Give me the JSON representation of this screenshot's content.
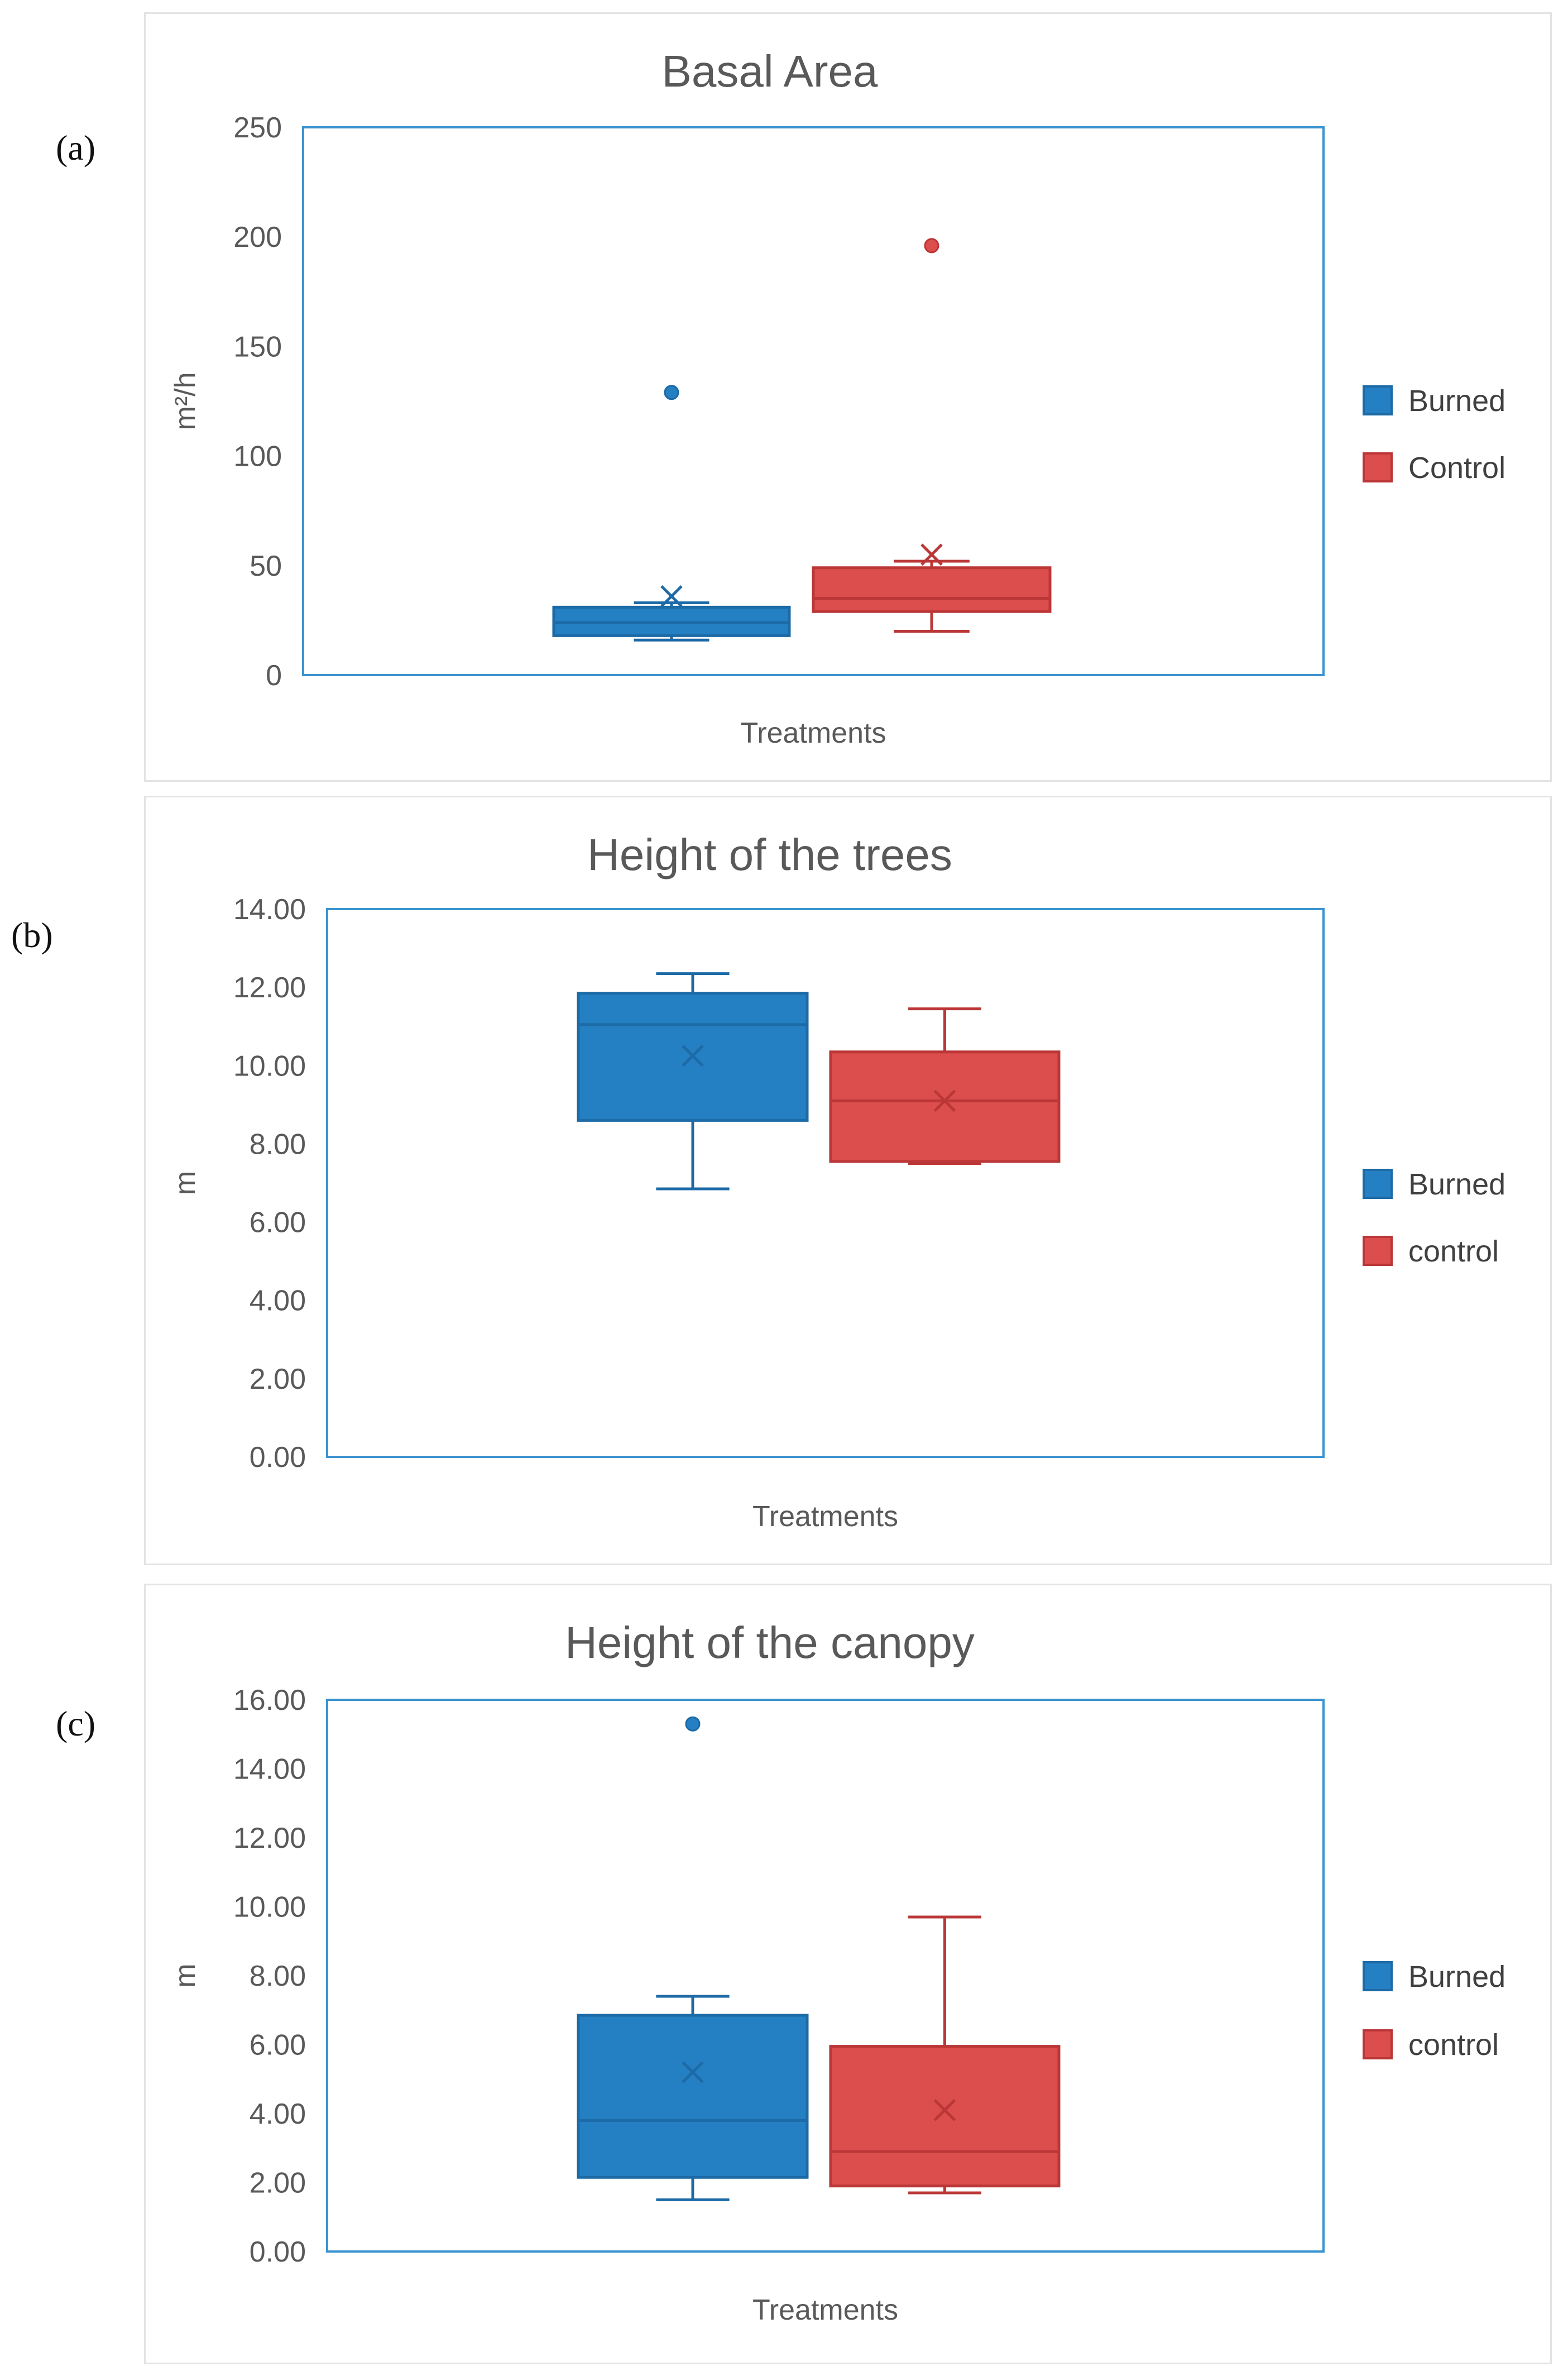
{
  "panel_labels": [
    "(a)",
    "(b)",
    "(c)"
  ],
  "colors": {
    "burned_fill": "#2480c3",
    "burned_edge": "#1c6aa6",
    "control_fill": "#dc4d4d",
    "control_edge": "#bb3737",
    "plot_border": "#3b93cf",
    "frame_border": "#e3e3e3",
    "text": "#595959"
  },
  "chart_data": [
    {
      "type": "boxplot",
      "title": "Basal Area",
      "xlabel": "Treatments",
      "ylabel": "m²/h",
      "ylim": [
        0,
        250
      ],
      "yticks": [
        0,
        50,
        100,
        150,
        200,
        250
      ],
      "ytick_decimals": 0,
      "legend_position": "right",
      "series": [
        {
          "name": "Burned",
          "whisker_low": 16,
          "q1": 18,
          "median": 24,
          "q3": 31,
          "whisker_high": 33,
          "mean": 36,
          "outliers": [
            129
          ]
        },
        {
          "name": "Control",
          "whisker_low": 20,
          "q1": 29,
          "median": 35,
          "q3": 49,
          "whisker_high": 52,
          "mean": 55,
          "outliers": [
            196
          ]
        }
      ]
    },
    {
      "type": "boxplot",
      "title": "Height of the trees",
      "xlabel": "Treatments",
      "ylabel": "m",
      "ylim": [
        0,
        14
      ],
      "yticks": [
        0,
        2,
        4,
        6,
        8,
        10,
        12,
        14
      ],
      "ytick_decimals": 2,
      "legend_position": "right",
      "series": [
        {
          "name": "Burned",
          "whisker_low": 6.85,
          "q1": 8.6,
          "median": 11.05,
          "q3": 11.85,
          "whisker_high": 12.35,
          "mean": 10.25,
          "outliers": []
        },
        {
          "name": "control",
          "whisker_low": 7.5,
          "q1": 7.55,
          "median": 9.1,
          "q3": 10.35,
          "whisker_high": 11.45,
          "mean": 9.1,
          "outliers": []
        }
      ]
    },
    {
      "type": "boxplot",
      "title": "Height of the canopy",
      "xlabel": "Treatments",
      "ylabel": "m",
      "ylim": [
        0,
        16
      ],
      "yticks": [
        0,
        2,
        4,
        6,
        8,
        10,
        12,
        14,
        16
      ],
      "ytick_decimals": 2,
      "legend_position": "right",
      "series": [
        {
          "name": "Burned",
          "whisker_low": 1.5,
          "q1": 2.15,
          "median": 3.8,
          "q3": 6.85,
          "whisker_high": 7.4,
          "mean": 5.2,
          "outliers": [
            15.3
          ]
        },
        {
          "name": "control",
          "whisker_low": 1.7,
          "q1": 1.9,
          "median": 2.9,
          "q3": 5.95,
          "whisker_high": 9.7,
          "mean": 4.1,
          "outliers": []
        }
      ]
    }
  ]
}
